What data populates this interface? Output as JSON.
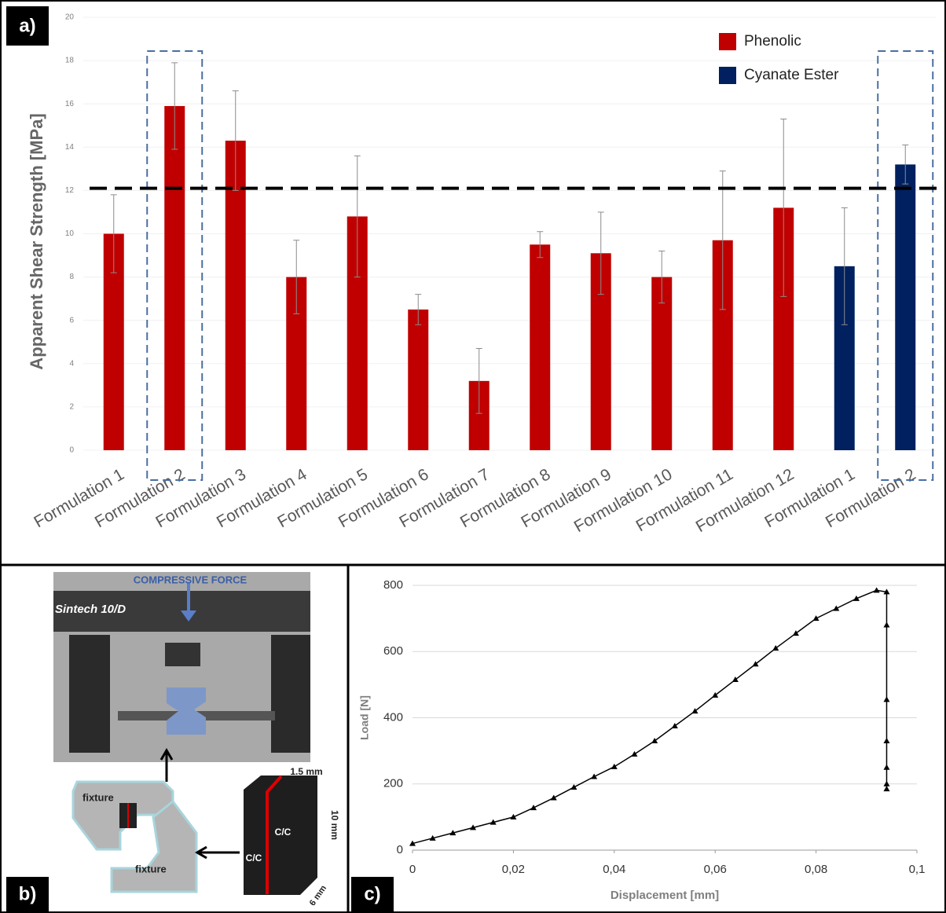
{
  "chart_data": [
    {
      "type": "bar",
      "y_label": "Apparent Shear Strength [MPa]",
      "categories": [
        "Formulation 1",
        "Formulation 2",
        "Formulation 3",
        "Formulation 4",
        "Formulation 5",
        "Formulation 6",
        "Formulation 7",
        "Formulation 8",
        "Formulation 9",
        "Formulation 10",
        "Formulation 11",
        "Formulation 12",
        "Formulation 1",
        "Formulation 2"
      ],
      "series": [
        {
          "name": "Phenolic",
          "color": "#c00000",
          "values": [
            10.0,
            15.9,
            14.3,
            8.0,
            10.8,
            6.5,
            3.2,
            9.5,
            9.1,
            8.0,
            9.7,
            11.2,
            null,
            null
          ],
          "errors": [
            1.8,
            2.0,
            2.3,
            1.7,
            2.8,
            0.7,
            1.5,
            0.6,
            1.9,
            1.2,
            3.2,
            4.1,
            null,
            null
          ]
        },
        {
          "name": "Cyanate Ester",
          "color": "#002060",
          "values": [
            null,
            null,
            null,
            null,
            null,
            null,
            null,
            null,
            null,
            null,
            null,
            null,
            8.5,
            13.2
          ],
          "errors": [
            null,
            null,
            null,
            null,
            null,
            null,
            null,
            null,
            null,
            null,
            null,
            null,
            2.7,
            0.9
          ]
        }
      ],
      "ylim": [
        0,
        20
      ],
      "yticks": [
        0,
        2,
        4,
        6,
        8,
        10,
        12,
        14,
        16,
        18,
        20
      ],
      "grid": true,
      "legend": "top-right",
      "reference_line": 12.1,
      "highlight": [
        1,
        13
      ]
    },
    {
      "type": "line",
      "x_label": "Displacement [mm]",
      "y_label": "Load [N]",
      "x": [
        0,
        0.004,
        0.008,
        0.012,
        0.016,
        0.02,
        0.024,
        0.028,
        0.032,
        0.036,
        0.04,
        0.044,
        0.048,
        0.052,
        0.056,
        0.06,
        0.064,
        0.068,
        0.072,
        0.076,
        0.08,
        0.084,
        0.088,
        0.092,
        0.094,
        0.094,
        0.094,
        0.094,
        0.094,
        0.094,
        0.094
      ],
      "series": [
        {
          "name": "Load",
          "color": "#000000",
          "values": [
            20,
            36,
            52,
            68,
            84,
            100,
            128,
            158,
            190,
            222,
            252,
            290,
            330,
            375,
            420,
            468,
            515,
            562,
            610,
            655,
            700,
            730,
            760,
            785,
            780,
            680,
            455,
            330,
            250,
            200,
            185
          ]
        }
      ],
      "xlim": [
        0,
        0.1
      ],
      "xticks": [
        0,
        {
          "value": 0.02,
          "label": "0,02"
        },
        {
          "value": 0.04,
          "label": "0,04"
        },
        {
          "value": 0.06,
          "label": "0,06"
        },
        {
          "value": 0.08,
          "label": "0,08"
        },
        {
          "value": 0.1,
          "label": "0,1"
        }
      ],
      "ylim": [
        0,
        800
      ],
      "yticks": [
        0,
        200,
        400,
        600,
        800
      ],
      "grid": true
    }
  ],
  "panel_labels": [
    "a)",
    "b)",
    "c)"
  ],
  "diagram": {
    "force": "COMPRESSIVE FORCE",
    "machine": "Sintech 10/D",
    "fixture_top": "fixture",
    "fixture_bottom": "fixture",
    "width": "1.5 mm",
    "height": "10 mm",
    "depth": "6 mm",
    "material_a": "C/C",
    "material_b": "C/C"
  }
}
